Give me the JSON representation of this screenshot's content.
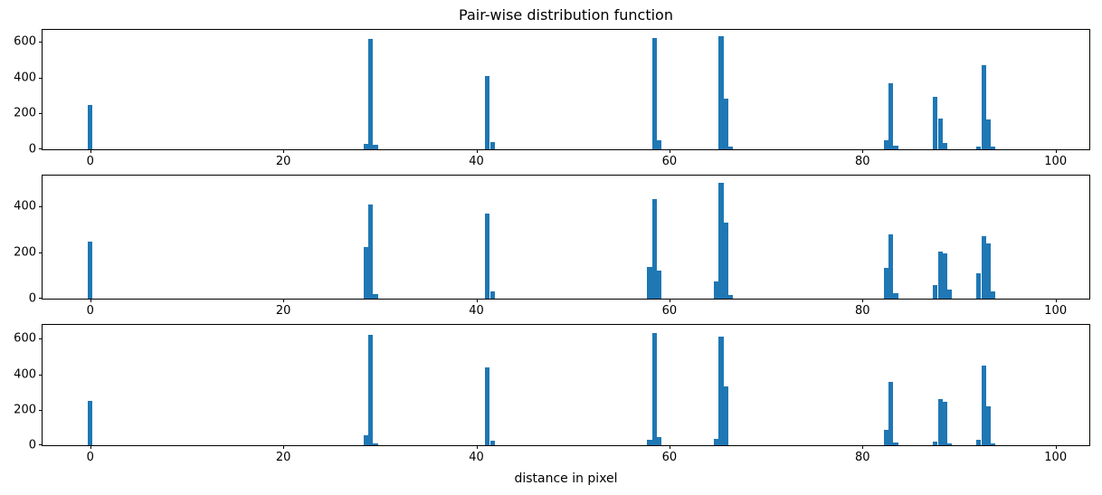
{
  "chart_data": {
    "type": "bar",
    "title": "Pair-wise distribution function",
    "xlabel": "distance in pixel",
    "ylabel": "",
    "bar_color": "#1f77b4",
    "grid": false,
    "legend": null,
    "xlim": [
      -4.95,
      103.5
    ],
    "xticks": [
      0,
      20,
      40,
      60,
      80,
      100
    ],
    "bin_width": 0.5,
    "subplots": [
      {
        "name": "top",
        "ylim": [
          0,
          665
        ],
        "yticks": [
          0,
          200,
          400,
          600
        ],
        "bars": [
          [
            -0.25,
            245
          ],
          [
            28.3,
            30
          ],
          [
            28.8,
            615
          ],
          [
            29.3,
            25
          ],
          [
            40.9,
            410
          ],
          [
            41.4,
            40
          ],
          [
            58.2,
            620
          ],
          [
            58.7,
            50
          ],
          [
            65.1,
            630
          ],
          [
            65.6,
            280
          ],
          [
            66.1,
            15
          ],
          [
            82.2,
            50
          ],
          [
            82.7,
            370
          ],
          [
            83.2,
            20
          ],
          [
            87.3,
            290
          ],
          [
            87.8,
            172
          ],
          [
            88.3,
            35
          ],
          [
            91.8,
            15
          ],
          [
            92.3,
            470
          ],
          [
            92.8,
            165
          ],
          [
            93.3,
            15
          ]
        ]
      },
      {
        "name": "middle",
        "ylim": [
          0,
          531
        ],
        "yticks": [
          0,
          200,
          400
        ],
        "bars": [
          [
            -0.25,
            245
          ],
          [
            28.3,
            222
          ],
          [
            28.8,
            408
          ],
          [
            29.3,
            20
          ],
          [
            40.9,
            368
          ],
          [
            41.4,
            30
          ],
          [
            57.7,
            138
          ],
          [
            58.2,
            428
          ],
          [
            58.7,
            122
          ],
          [
            64.6,
            75
          ],
          [
            65.1,
            500
          ],
          [
            65.6,
            328
          ],
          [
            66.1,
            15
          ],
          [
            82.2,
            132
          ],
          [
            82.7,
            278
          ],
          [
            83.2,
            25
          ],
          [
            87.3,
            60
          ],
          [
            87.8,
            205
          ],
          [
            88.3,
            194
          ],
          [
            88.8,
            38
          ],
          [
            91.8,
            108
          ],
          [
            92.3,
            268
          ],
          [
            92.8,
            238
          ],
          [
            93.3,
            30
          ]
        ]
      },
      {
        "name": "bottom",
        "ylim": [
          0,
          678
        ],
        "yticks": [
          0,
          200,
          400,
          600
        ],
        "bars": [
          [
            -0.25,
            248
          ],
          [
            28.3,
            55
          ],
          [
            28.8,
            622
          ],
          [
            29.3,
            12
          ],
          [
            40.9,
            440
          ],
          [
            41.4,
            25
          ],
          [
            57.7,
            32
          ],
          [
            58.2,
            632
          ],
          [
            58.7,
            48
          ],
          [
            64.6,
            38
          ],
          [
            65.1,
            612
          ],
          [
            65.6,
            332
          ],
          [
            82.2,
            85
          ],
          [
            82.7,
            358
          ],
          [
            83.2,
            15
          ],
          [
            87.3,
            20
          ],
          [
            87.8,
            258
          ],
          [
            88.3,
            243
          ],
          [
            88.8,
            12
          ],
          [
            91.8,
            32
          ],
          [
            92.3,
            448
          ],
          [
            92.8,
            220
          ],
          [
            93.3,
            12
          ]
        ]
      }
    ]
  }
}
